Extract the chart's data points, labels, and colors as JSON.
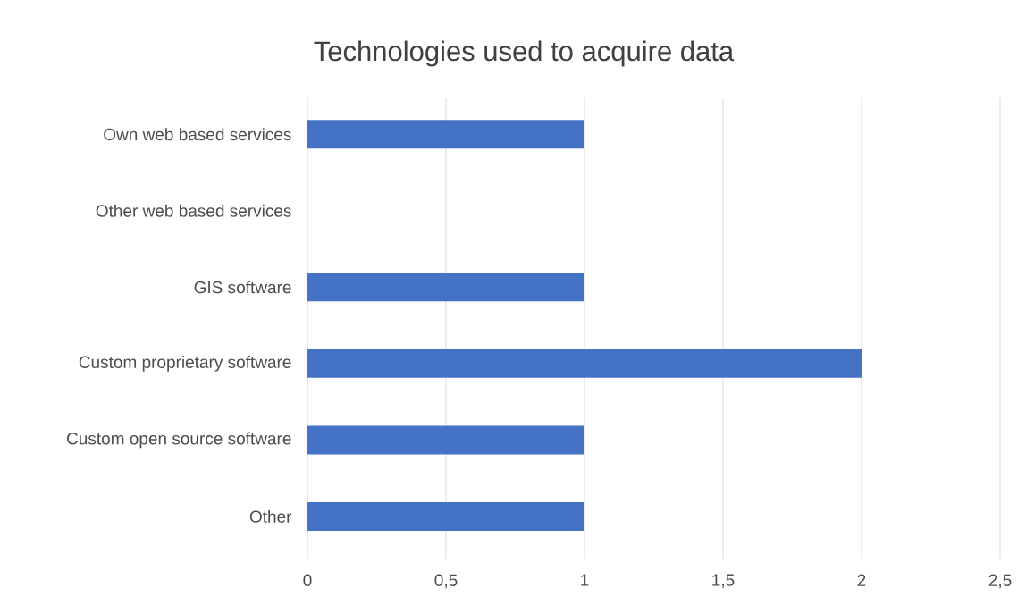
{
  "chart_data": {
    "type": "bar",
    "orientation": "horizontal",
    "title": "Technologies used to acquire data",
    "categories": [
      "Own web based services",
      "Other web based services",
      "GIS software",
      "Custom proprietary software",
      "Custom open source software",
      "Other"
    ],
    "values": [
      1,
      0,
      1,
      2,
      1,
      1
    ],
    "color": "#4472c4",
    "xlim": [
      0,
      2.5
    ],
    "xticks": [
      0,
      {
        "value": 0.5,
        "label": "0,5"
      },
      1,
      {
        "value": 1.5,
        "label": "1,5"
      },
      2,
      {
        "value": 2.5,
        "label": "2,5"
      }
    ],
    "grid": "x"
  }
}
